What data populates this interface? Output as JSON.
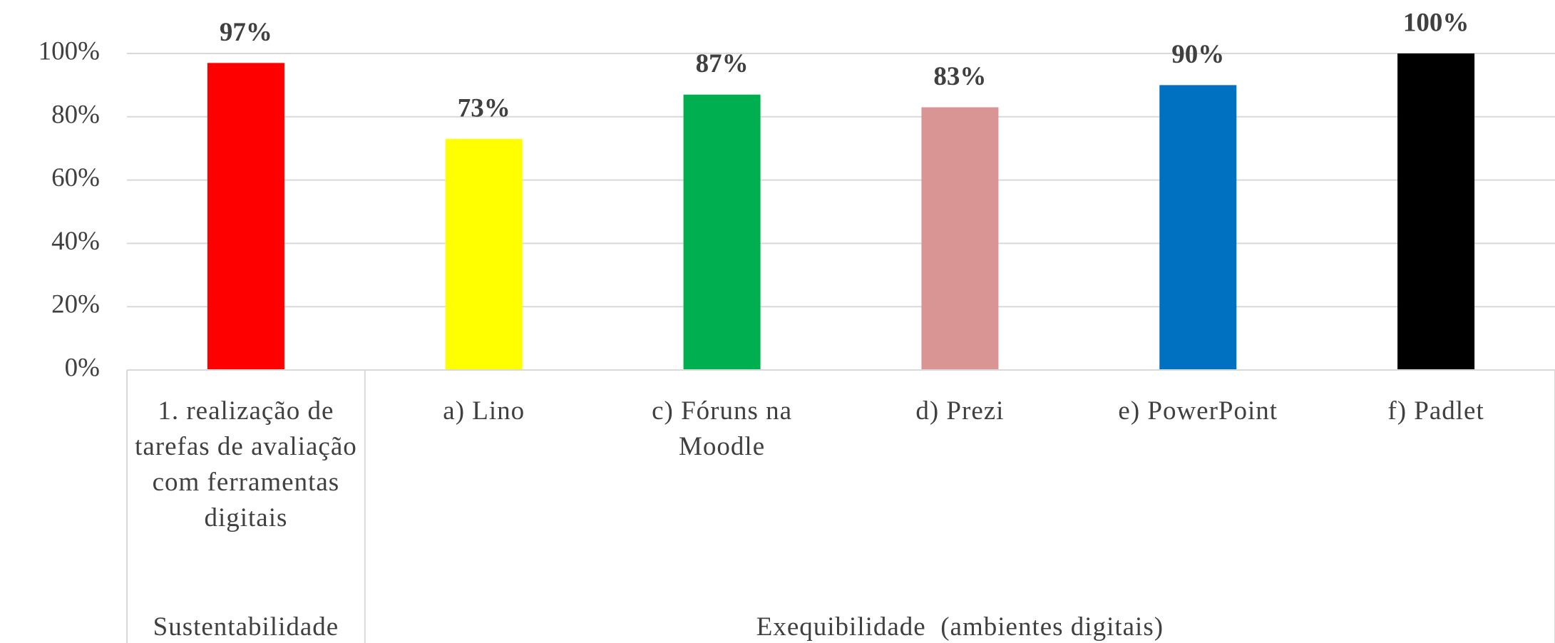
{
  "chart_data": {
    "type": "bar",
    "groups": [
      {
        "name": "Sustentabilidade",
        "categories": [
          "1. realização de tarefas de avaliação com ferramentas digitais"
        ],
        "values": [
          97
        ],
        "value_labels": [
          "97%"
        ],
        "colors": [
          "#ff0000"
        ]
      },
      {
        "name": "Exequibilidade  (ambientes digitais)",
        "categories": [
          "a) Lino",
          "c) Fóruns na Moodle",
          "d) Prezi",
          "e) PowerPoint",
          "f) Padlet"
        ],
        "values": [
          73,
          87,
          83,
          90,
          100
        ],
        "value_labels": [
          "73%",
          "87%",
          "83%",
          "90%",
          "100%"
        ],
        "colors": [
          "#ffff00",
          "#00b050",
          "#d99594",
          "#0070c0",
          "#000000"
        ]
      }
    ],
    "ylim": [
      0,
      100
    ],
    "yticks": [
      {
        "value": 0,
        "label": "0%"
      },
      {
        "value": 20,
        "label": "20%"
      },
      {
        "value": 40,
        "label": "40%"
      },
      {
        "value": 60,
        "label": "60%"
      },
      {
        "value": 80,
        "label": "80%"
      },
      {
        "value": 100,
        "label": "100%"
      }
    ],
    "grid": true
  }
}
